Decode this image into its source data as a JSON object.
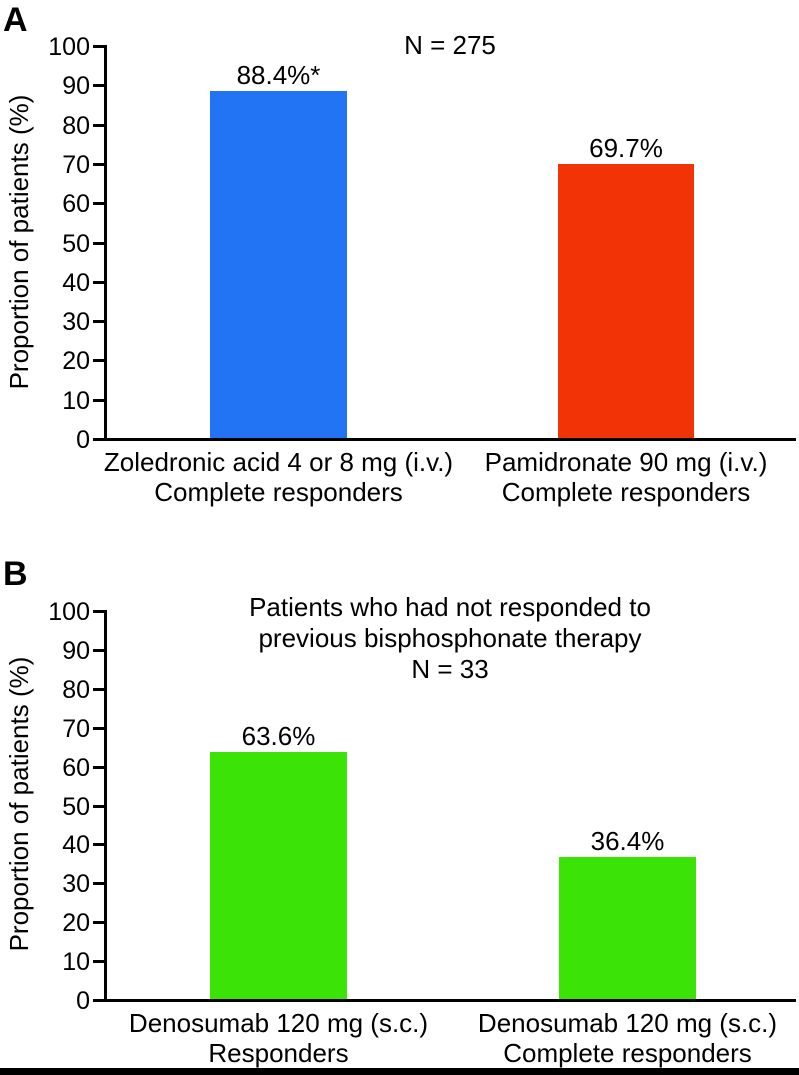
{
  "page": {
    "background": "#ffffff",
    "footer_bar_color": "#000000"
  },
  "chart_data": [
    {
      "type": "bar",
      "panel_label": "A",
      "title_lines": [
        "N = 275"
      ],
      "ylabel": "Proportion of patients (%)",
      "ylim": [
        0,
        100
      ],
      "yticks": [
        0,
        10,
        20,
        30,
        40,
        50,
        60,
        70,
        80,
        90,
        100
      ],
      "grid": false,
      "legend": null,
      "bars": [
        {
          "category_lines": [
            "Zoledronic acid 4 or 8 mg (i.v.)",
            "Complete responders"
          ],
          "value": 88.4,
          "value_label": "88.4%*",
          "color": "#2374f5"
        },
        {
          "category_lines": [
            "Pamidronate 90 mg (i.v.)",
            "Complete responders"
          ],
          "value": 69.7,
          "value_label": "69.7%",
          "color": "#f23305"
        }
      ]
    },
    {
      "type": "bar",
      "panel_label": "B",
      "title_lines": [
        "Patients who had not responded to",
        "previous bisphosphonate therapy",
        "N = 33"
      ],
      "ylabel": "Proportion of patients (%)",
      "ylim": [
        0,
        100
      ],
      "yticks": [
        0,
        10,
        20,
        30,
        40,
        50,
        60,
        70,
        80,
        90,
        100
      ],
      "grid": false,
      "legend": null,
      "bars": [
        {
          "category_lines": [
            "Denosumab 120 mg (s.c.)",
            "Responders"
          ],
          "value": 63.6,
          "value_label": "63.6%",
          "color": "#3be307"
        },
        {
          "category_lines": [
            "Denosumab 120 mg (s.c.)",
            "Complete responders"
          ],
          "value": 36.4,
          "value_label": "36.4%",
          "color": "#3be307"
        }
      ]
    }
  ]
}
